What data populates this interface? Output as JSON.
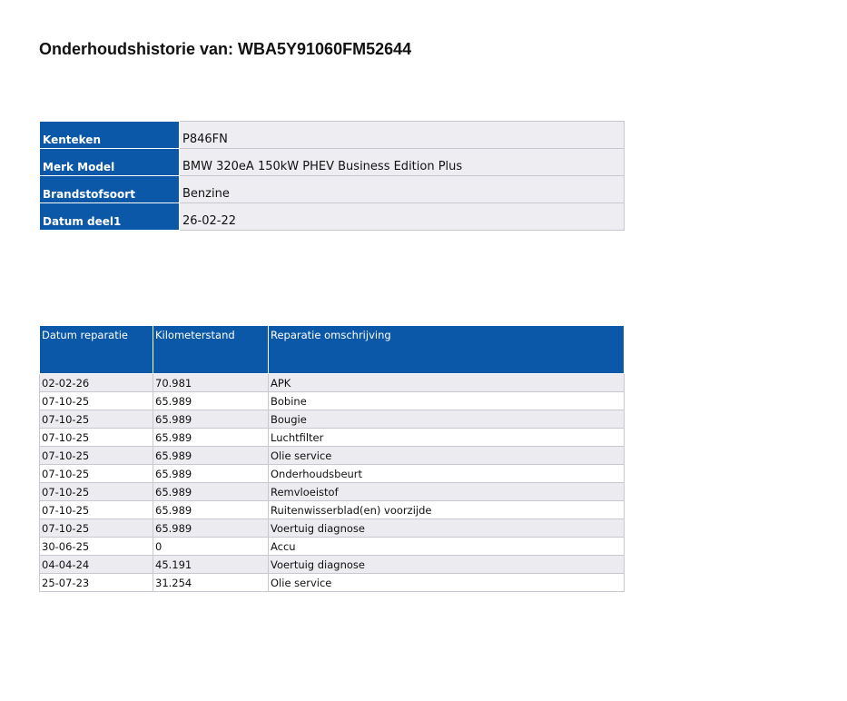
{
  "title": "Onderhoudshistorie van: WBA5Y91060FM52644",
  "vehicle": [
    {
      "label": "Kenteken",
      "value": "P846FN"
    },
    {
      "label": "Merk Model",
      "value": "BMW 320eA 150kW PHEV Business Edition Plus"
    },
    {
      "label": "Brandstofsoort",
      "value": "Benzine"
    },
    {
      "label": "Datum deel1",
      "value": "26-02-22"
    }
  ],
  "history": {
    "headers": [
      "Datum reparatie",
      "Kilometerstand",
      "Reparatie omschrijving"
    ],
    "rows": [
      [
        "02-02-26",
        "70.981",
        "APK"
      ],
      [
        "07-10-25",
        "65.989",
        "Bobine"
      ],
      [
        "07-10-25",
        "65.989",
        "Bougie"
      ],
      [
        "07-10-25",
        "65.989",
        "Luchtfilter"
      ],
      [
        "07-10-25",
        "65.989",
        "Olie service"
      ],
      [
        "07-10-25",
        "65.989",
        "Onderhoudsbeurt"
      ],
      [
        "07-10-25",
        "65.989",
        "Remvloeistof"
      ],
      [
        "07-10-25",
        "65.989",
        "Ruitenwisserblad(en) voorzijde"
      ],
      [
        "07-10-25",
        "65.989",
        "Voertuig diagnose"
      ],
      [
        "30-06-25",
        "0",
        "Accu"
      ],
      [
        "04-04-24",
        "45.191",
        "Voertuig diagnose"
      ],
      [
        "25-07-23",
        "31.254",
        "Olie service"
      ]
    ]
  },
  "colors": {
    "header_blue": "#0b57a8"
  }
}
